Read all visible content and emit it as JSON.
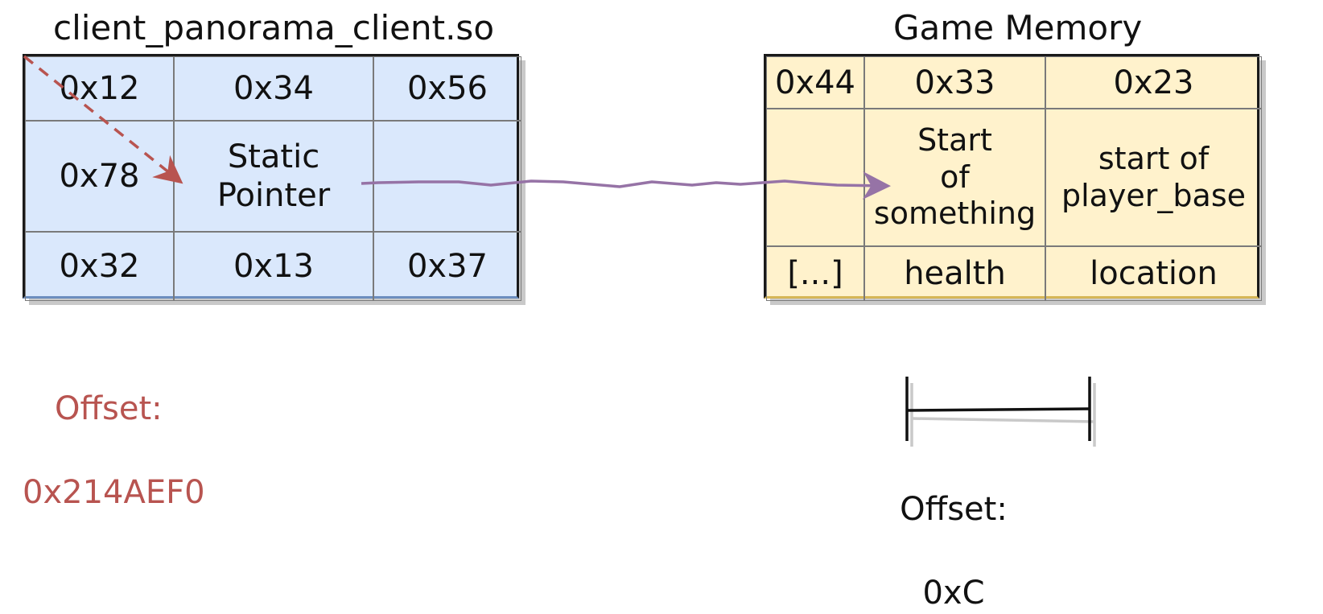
{
  "client_module": {
    "title": "client_panorama_client.so",
    "color": "#dae8fc",
    "rows": [
      [
        "0x12",
        "0x34",
        "0x56"
      ],
      [
        "0x78",
        "Static\nPointer",
        ""
      ],
      [
        "0x32",
        "0x13",
        "0x37"
      ]
    ],
    "offset_label": "Offset:",
    "offset_value": "0x214AEF0",
    "offset_color": "#b85450"
  },
  "game_memory": {
    "title": "Game Memory",
    "color": "#fff2cc",
    "rows": [
      [
        "0x44",
        "0x33",
        "0x23"
      ],
      [
        "",
        "Start\nof\nsomething",
        "start of\nplayer_base"
      ],
      [
        "[...]",
        "health",
        "location"
      ]
    ],
    "offset_label": "Offset:",
    "offset_value": "0xC"
  },
  "arrows": {
    "offset_arrow_color": "#b85450",
    "pointer_arrow_color": "#9673a6"
  }
}
